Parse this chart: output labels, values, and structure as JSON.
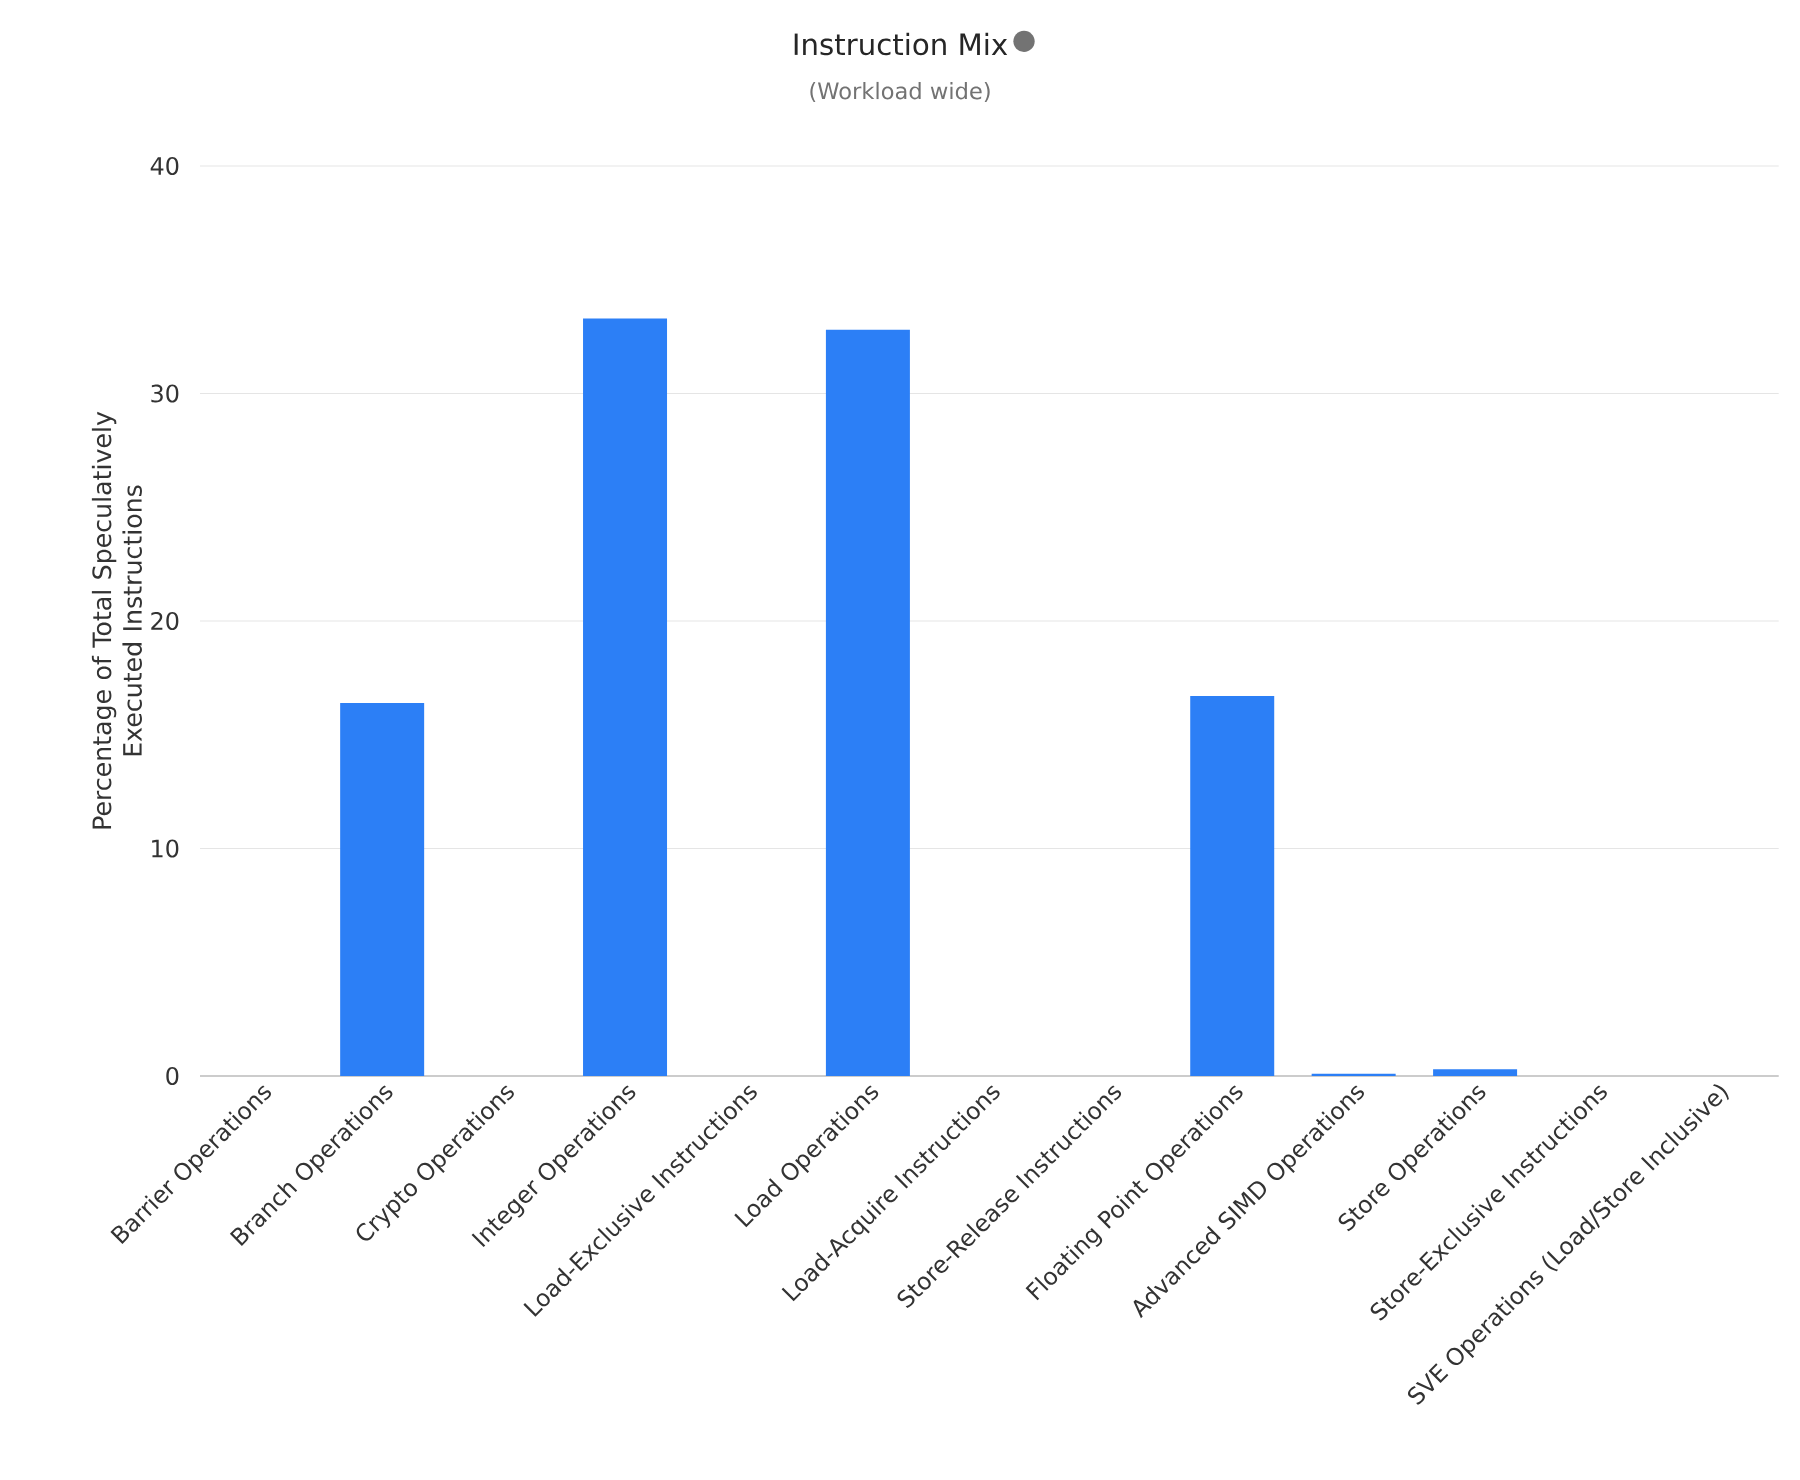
{
  "chart_data": {
    "type": "bar",
    "title": "Instruction Mix",
    "subtitle": "(Workload wide)",
    "ylabel": "Percentage of Total Speculatively Executed Instructions",
    "categories": [
      "Barrier Operations",
      "Branch Operations",
      "Crypto Operations",
      "Integer Operations",
      "Load-Exclusive Instructions",
      "Load Operations",
      "Load-Acquire Instructions",
      "Store-Release Instructions",
      "Floating Point Operations",
      "Advanced SIMD Operations",
      "Store Operations",
      "Store-Exclusive Instructions",
      "SVE Operations (Load/Store Inclusive)"
    ],
    "values": [
      0,
      16.4,
      0,
      33.3,
      0,
      32.8,
      0,
      0,
      16.7,
      0.1,
      0.3,
      0,
      0
    ],
    "color": "#2c7ff6",
    "ylim": [
      0,
      40
    ],
    "yticks": [
      0,
      10,
      20,
      30,
      40
    ],
    "grid": "y"
  }
}
